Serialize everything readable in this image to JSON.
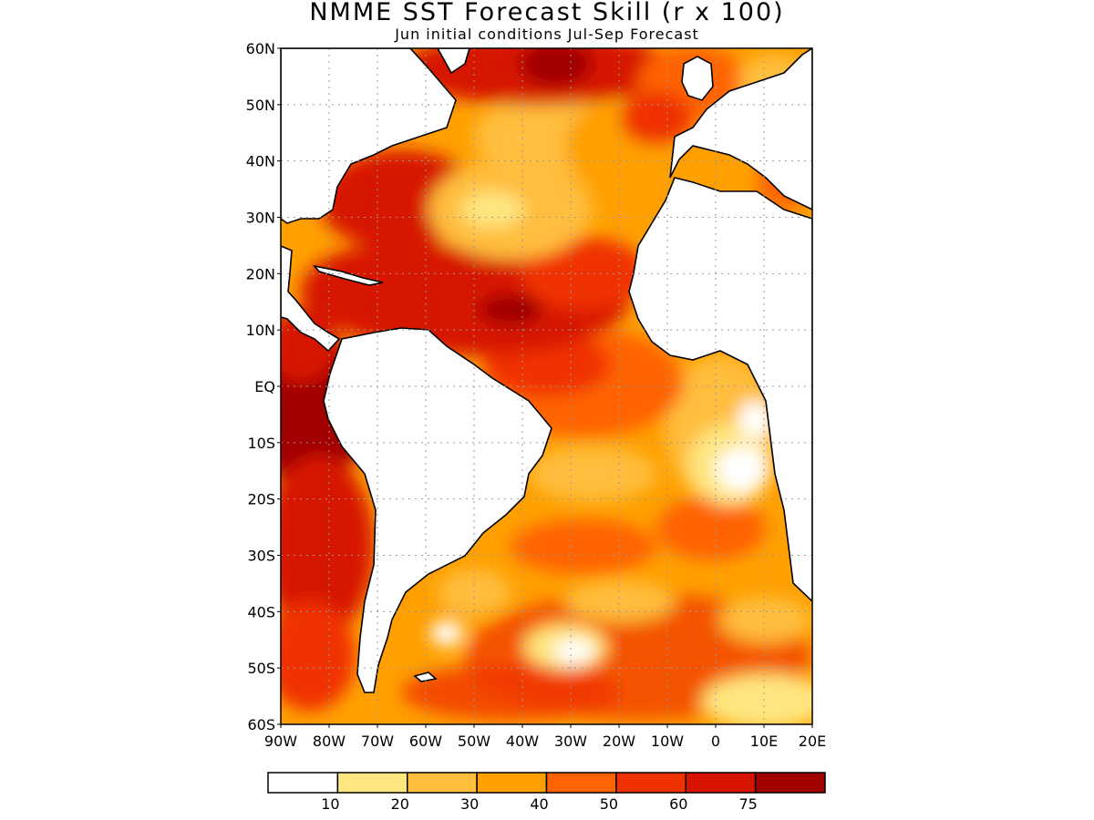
{
  "header": {
    "title": "NMME SST Forecast Skill (r x 100)",
    "subtitle": "Jun initial conditions  Jul-Sep Forecast"
  },
  "map": {
    "lon_range": [
      -90,
      20
    ],
    "lat_range": [
      -60,
      60
    ],
    "lat_labels": [
      {
        "lat": 60,
        "text": "60N"
      },
      {
        "lat": 50,
        "text": "50N"
      },
      {
        "lat": 40,
        "text": "40N"
      },
      {
        "lat": 30,
        "text": "30N"
      },
      {
        "lat": 20,
        "text": "20N"
      },
      {
        "lat": 10,
        "text": "10N"
      },
      {
        "lat": 0,
        "text": "EQ"
      },
      {
        "lat": -10,
        "text": "10S"
      },
      {
        "lat": -20,
        "text": "20S"
      },
      {
        "lat": -30,
        "text": "30S"
      },
      {
        "lat": -40,
        "text": "40S"
      },
      {
        "lat": -50,
        "text": "50S"
      },
      {
        "lat": -60,
        "text": "60S"
      }
    ],
    "lon_labels": [
      {
        "lon": -90,
        "text": "90W"
      },
      {
        "lon": -80,
        "text": "80W"
      },
      {
        "lon": -70,
        "text": "70W"
      },
      {
        "lon": -60,
        "text": "60W"
      },
      {
        "lon": -50,
        "text": "50W"
      },
      {
        "lon": -40,
        "text": "40W"
      },
      {
        "lon": -30,
        "text": "30W"
      },
      {
        "lon": -20,
        "text": "20W"
      },
      {
        "lon": -10,
        "text": "10W"
      },
      {
        "lon": 0,
        "text": "0"
      },
      {
        "lon": 10,
        "text": "10E"
      },
      {
        "lon": 20,
        "text": "20E"
      }
    ]
  },
  "legend": {
    "colors": [
      "#ffffff",
      "#ffe680",
      "#ffbe3c",
      "#ffa000",
      "#ff6400",
      "#f03200",
      "#d71400",
      "#a00000"
    ],
    "labels": [
      "10",
      "20",
      "30",
      "40",
      "50",
      "60",
      "75"
    ]
  },
  "colors": {
    "land": "#ffffff",
    "coast": "#000000",
    "grid": "#999999"
  }
}
